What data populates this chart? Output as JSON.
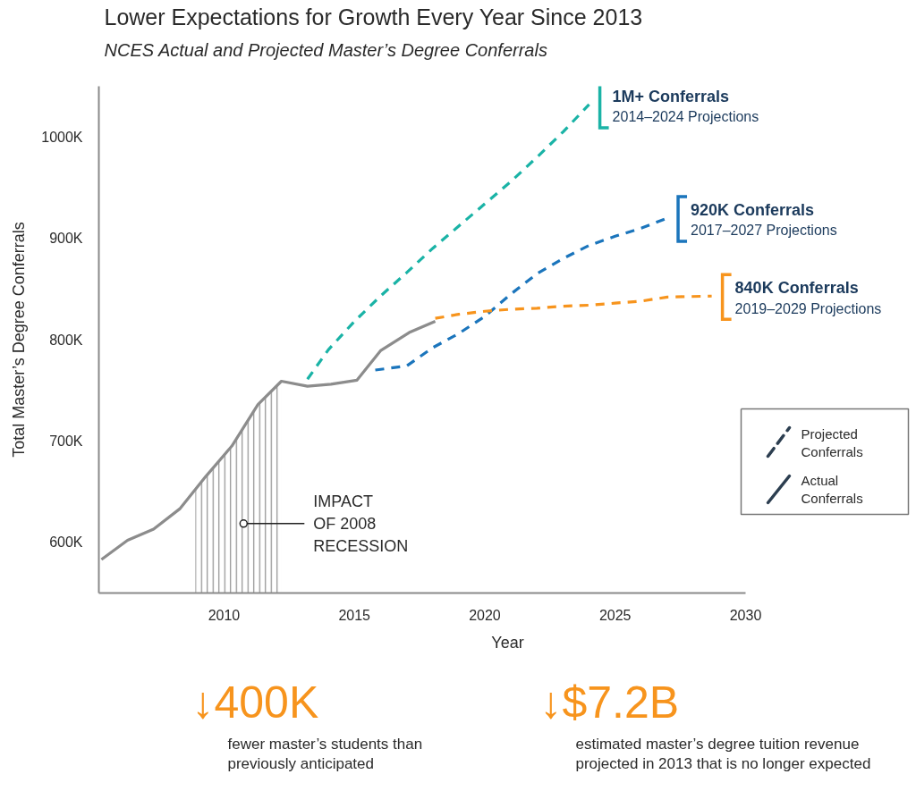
{
  "chart_data": {
    "type": "line",
    "title": "Lower Expectations for Growth Every Year Since 2013",
    "subtitle": "NCES Actual and Projected Master’s Degree Conferrals",
    "xlabel": "Year",
    "ylabel": "Total Master’s Degree Conferrals",
    "xlim": [
      2005.2,
      2030
    ],
    "xticks": [
      2010,
      2015,
      2020,
      2025,
      2030
    ],
    "ylim": [
      550000,
      1050000
    ],
    "yticks": [
      {
        "value": 600000,
        "label": "600K"
      },
      {
        "value": 700000,
        "label": "700K"
      },
      {
        "value": 800000,
        "label": "800K"
      },
      {
        "value": 900000,
        "label": "900K"
      },
      {
        "value": 1000000,
        "label": "1000K"
      }
    ],
    "grid": false,
    "series": [
      {
        "color": "#8c8c8c",
        "line_style": "solid",
        "x": [
          2005.3,
          2006.3,
          2007.3,
          2008.3,
          2009.3,
          2010.3,
          2011.3,
          2012.2,
          2013.2,
          2014.1,
          2015.1,
          2016.0,
          2017.1,
          2018.1
        ],
        "values": [
          583000,
          602000,
          613000,
          633000,
          665000,
          695000,
          736000,
          759000,
          754000,
          756000,
          760000,
          789000,
          807000,
          818000
        ]
      },
      {
        "color": "#1ab3a6",
        "line_style": "dashed",
        "x": [
          2013.2,
          2014,
          2015,
          2016,
          2017,
          2018,
          2019,
          2020,
          2021,
          2022,
          2023,
          2024
        ],
        "values": [
          761000,
          790000,
          818000,
          843000,
          866000,
          890000,
          912000,
          934000,
          956000,
          980000,
          1005000,
          1032000
        ]
      },
      {
        "color": "#1b75bc",
        "line_style": "dashed",
        "x": [
          2015.8,
          2017,
          2018,
          2019,
          2020,
          2021,
          2022,
          2023,
          2024,
          2025,
          2026,
          2027
        ],
        "values": [
          770000,
          774000,
          792000,
          806000,
          823000,
          845000,
          865000,
          880000,
          893000,
          902000,
          910000,
          920000
        ]
      },
      {
        "color": "#f7941d",
        "line_style": "dashed",
        "x": [
          2018.1,
          2019,
          2020,
          2021,
          2022,
          2023,
          2024,
          2025,
          2026,
          2027,
          2028.7
        ],
        "values": [
          821000,
          825000,
          828000,
          830000,
          831000,
          833000,
          834000,
          836000,
          838000,
          842000,
          843000
        ]
      },
      {
        "type": "area",
        "color": "#8c8c8c",
        "x": [
          2008.9,
          2009.3,
          2010.3,
          2011.3,
          2012.2
        ],
        "values": [
          652000,
          665000,
          695000,
          736000,
          759000
        ]
      }
    ],
    "annotations": [
      {
        "text": "1M+ Conferrals\n2014–2024 Projections",
        "x": 2024,
        "y": 1032000
      },
      {
        "text": "920K Conferrals\n2017–2027 Projections",
        "x": 2027,
        "y": 920000
      },
      {
        "text": "840K Conferrals\n2019–2029 Projections",
        "x": 2028.7,
        "y": 843000
      },
      {
        "text": "IMPACT\nOF 2008\nRECESSION",
        "x": 2010.75,
        "y": 618500
      },
      "Projected\nConferrals",
      "Actual\nConferrals",
      "↓400K",
      "fewer master’s students than\npreviously anticipated",
      "↓$7.2B",
      "estimated master’s degree tuition revenue\nprojected in 2013 that is no longer expected"
    ]
  }
}
